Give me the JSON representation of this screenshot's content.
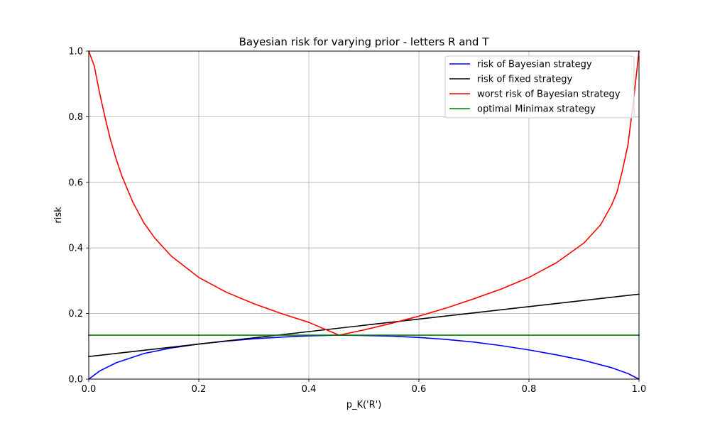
{
  "chart_data": {
    "type": "line",
    "title": "Bayesian risk for varying prior - letters R and T",
    "xlabel": "p_K('R')",
    "ylabel": "risk",
    "xlim": [
      0.0,
      1.0
    ],
    "ylim": [
      0.0,
      1.0
    ],
    "xticks": [
      "0.0",
      "0.2",
      "0.4",
      "0.6",
      "0.8",
      "1.0"
    ],
    "yticks": [
      "0.0",
      "0.2",
      "0.4",
      "0.6",
      "0.8",
      "1.0"
    ],
    "grid": true,
    "legend_position": "top-right",
    "series": [
      {
        "name": "risk of Bayesian strategy",
        "color": "#0000ff",
        "x": [
          0.0,
          0.02,
          0.05,
          0.1,
          0.15,
          0.2,
          0.25,
          0.3,
          0.35,
          0.4,
          0.45,
          0.5,
          0.55,
          0.6,
          0.65,
          0.7,
          0.75,
          0.8,
          0.85,
          0.9,
          0.95,
          0.98,
          1.0
        ],
        "y": [
          0.0,
          0.025,
          0.05,
          0.078,
          0.095,
          0.107,
          0.116,
          0.123,
          0.128,
          0.132,
          0.134,
          0.133,
          0.131,
          0.127,
          0.121,
          0.113,
          0.102,
          0.089,
          0.074,
          0.057,
          0.035,
          0.017,
          0.0
        ]
      },
      {
        "name": "risk of fixed strategy",
        "color": "#000000",
        "x": [
          0.0,
          1.0
        ],
        "y": [
          0.069,
          0.259
        ]
      },
      {
        "name": "worst risk of Bayesian strategy",
        "color": "#ff0000",
        "x": [
          0.0,
          0.01,
          0.02,
          0.03,
          0.04,
          0.05,
          0.06,
          0.08,
          0.1,
          0.12,
          0.15,
          0.2,
          0.25,
          0.3,
          0.35,
          0.4,
          0.455,
          0.5,
          0.55,
          0.6,
          0.65,
          0.7,
          0.75,
          0.8,
          0.85,
          0.9,
          0.93,
          0.95,
          0.96,
          0.97,
          0.98,
          0.99,
          1.0
        ],
        "y": [
          1.0,
          0.955,
          0.87,
          0.795,
          0.727,
          0.67,
          0.62,
          0.54,
          0.477,
          0.43,
          0.375,
          0.31,
          0.265,
          0.23,
          0.2,
          0.173,
          0.134,
          0.15,
          0.17,
          0.192,
          0.217,
          0.245,
          0.275,
          0.31,
          0.355,
          0.415,
          0.47,
          0.53,
          0.57,
          0.637,
          0.715,
          0.85,
          1.0
        ]
      },
      {
        "name": "optimal Minimax strategy",
        "color": "#008000",
        "x": [
          0.0,
          1.0
        ],
        "y": [
          0.134,
          0.134
        ]
      }
    ]
  }
}
